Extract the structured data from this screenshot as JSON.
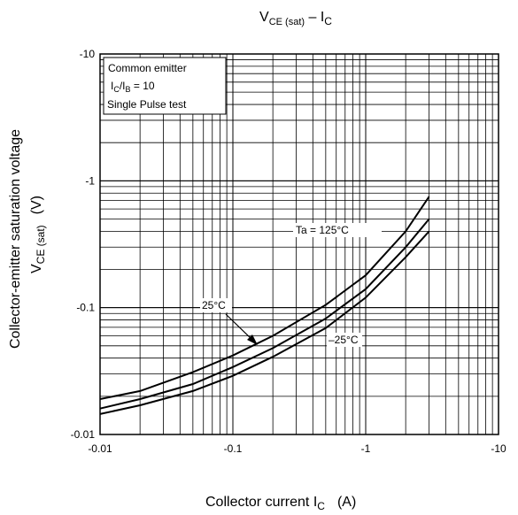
{
  "chart_data": {
    "type": "line",
    "title": {
      "main": "V",
      "sub1": "CE (sat)",
      "sep": " – I",
      "sub2": "C"
    },
    "xlabel": {
      "text": "Collector current  I",
      "sub": "C",
      "unit": "(A)"
    },
    "ylabel": {
      "line1": "Collector-emitter saturation voltage",
      "line2_main": "V",
      "line2_sub": "CE (sat)",
      "line2_unit": "(V)"
    },
    "xscale": "log",
    "yscale": "log",
    "xlim": [
      -0.01,
      -10
    ],
    "ylim": [
      -0.01,
      -10
    ],
    "xticks": [
      "-0.01",
      "-0.1",
      "-1",
      "-10"
    ],
    "yticks": [
      "-10",
      "-1",
      "-0.1",
      "-0.01"
    ],
    "grid": true,
    "legend_box": {
      "line1": "Common emitter",
      "line2_a": "I",
      "line2_sub1": "C",
      "line2_b": "/I",
      "line2_sub2": "B",
      "line2_c": " = 10",
      "line3": "Single Pulse test"
    },
    "series": [
      {
        "name": "Ta = 125°C",
        "x": [
          -0.01,
          -0.02,
          -0.05,
          -0.1,
          -0.2,
          -0.5,
          -1,
          -2,
          -3
        ],
        "y": [
          -0.019,
          -0.022,
          -0.031,
          -0.042,
          -0.06,
          -0.105,
          -0.18,
          -0.4,
          -0.75
        ]
      },
      {
        "name": "25°C",
        "x": [
          -0.01,
          -0.02,
          -0.05,
          -0.1,
          -0.2,
          -0.5,
          -1,
          -2,
          -3
        ],
        "y": [
          -0.016,
          -0.019,
          -0.025,
          -0.034,
          -0.048,
          -0.082,
          -0.14,
          -0.3,
          -0.5
        ]
      },
      {
        "name": "–25°C",
        "x": [
          -0.01,
          -0.02,
          -0.05,
          -0.1,
          -0.2,
          -0.5,
          -1,
          -2,
          -3
        ],
        "y": [
          -0.0145,
          -0.017,
          -0.022,
          -0.029,
          -0.041,
          -0.069,
          -0.12,
          -0.25,
          -0.4
        ]
      }
    ],
    "annotations": {
      "ta125": "Ta = 125°C",
      "t25": "25°C",
      "tm25": "–25°C"
    }
  }
}
